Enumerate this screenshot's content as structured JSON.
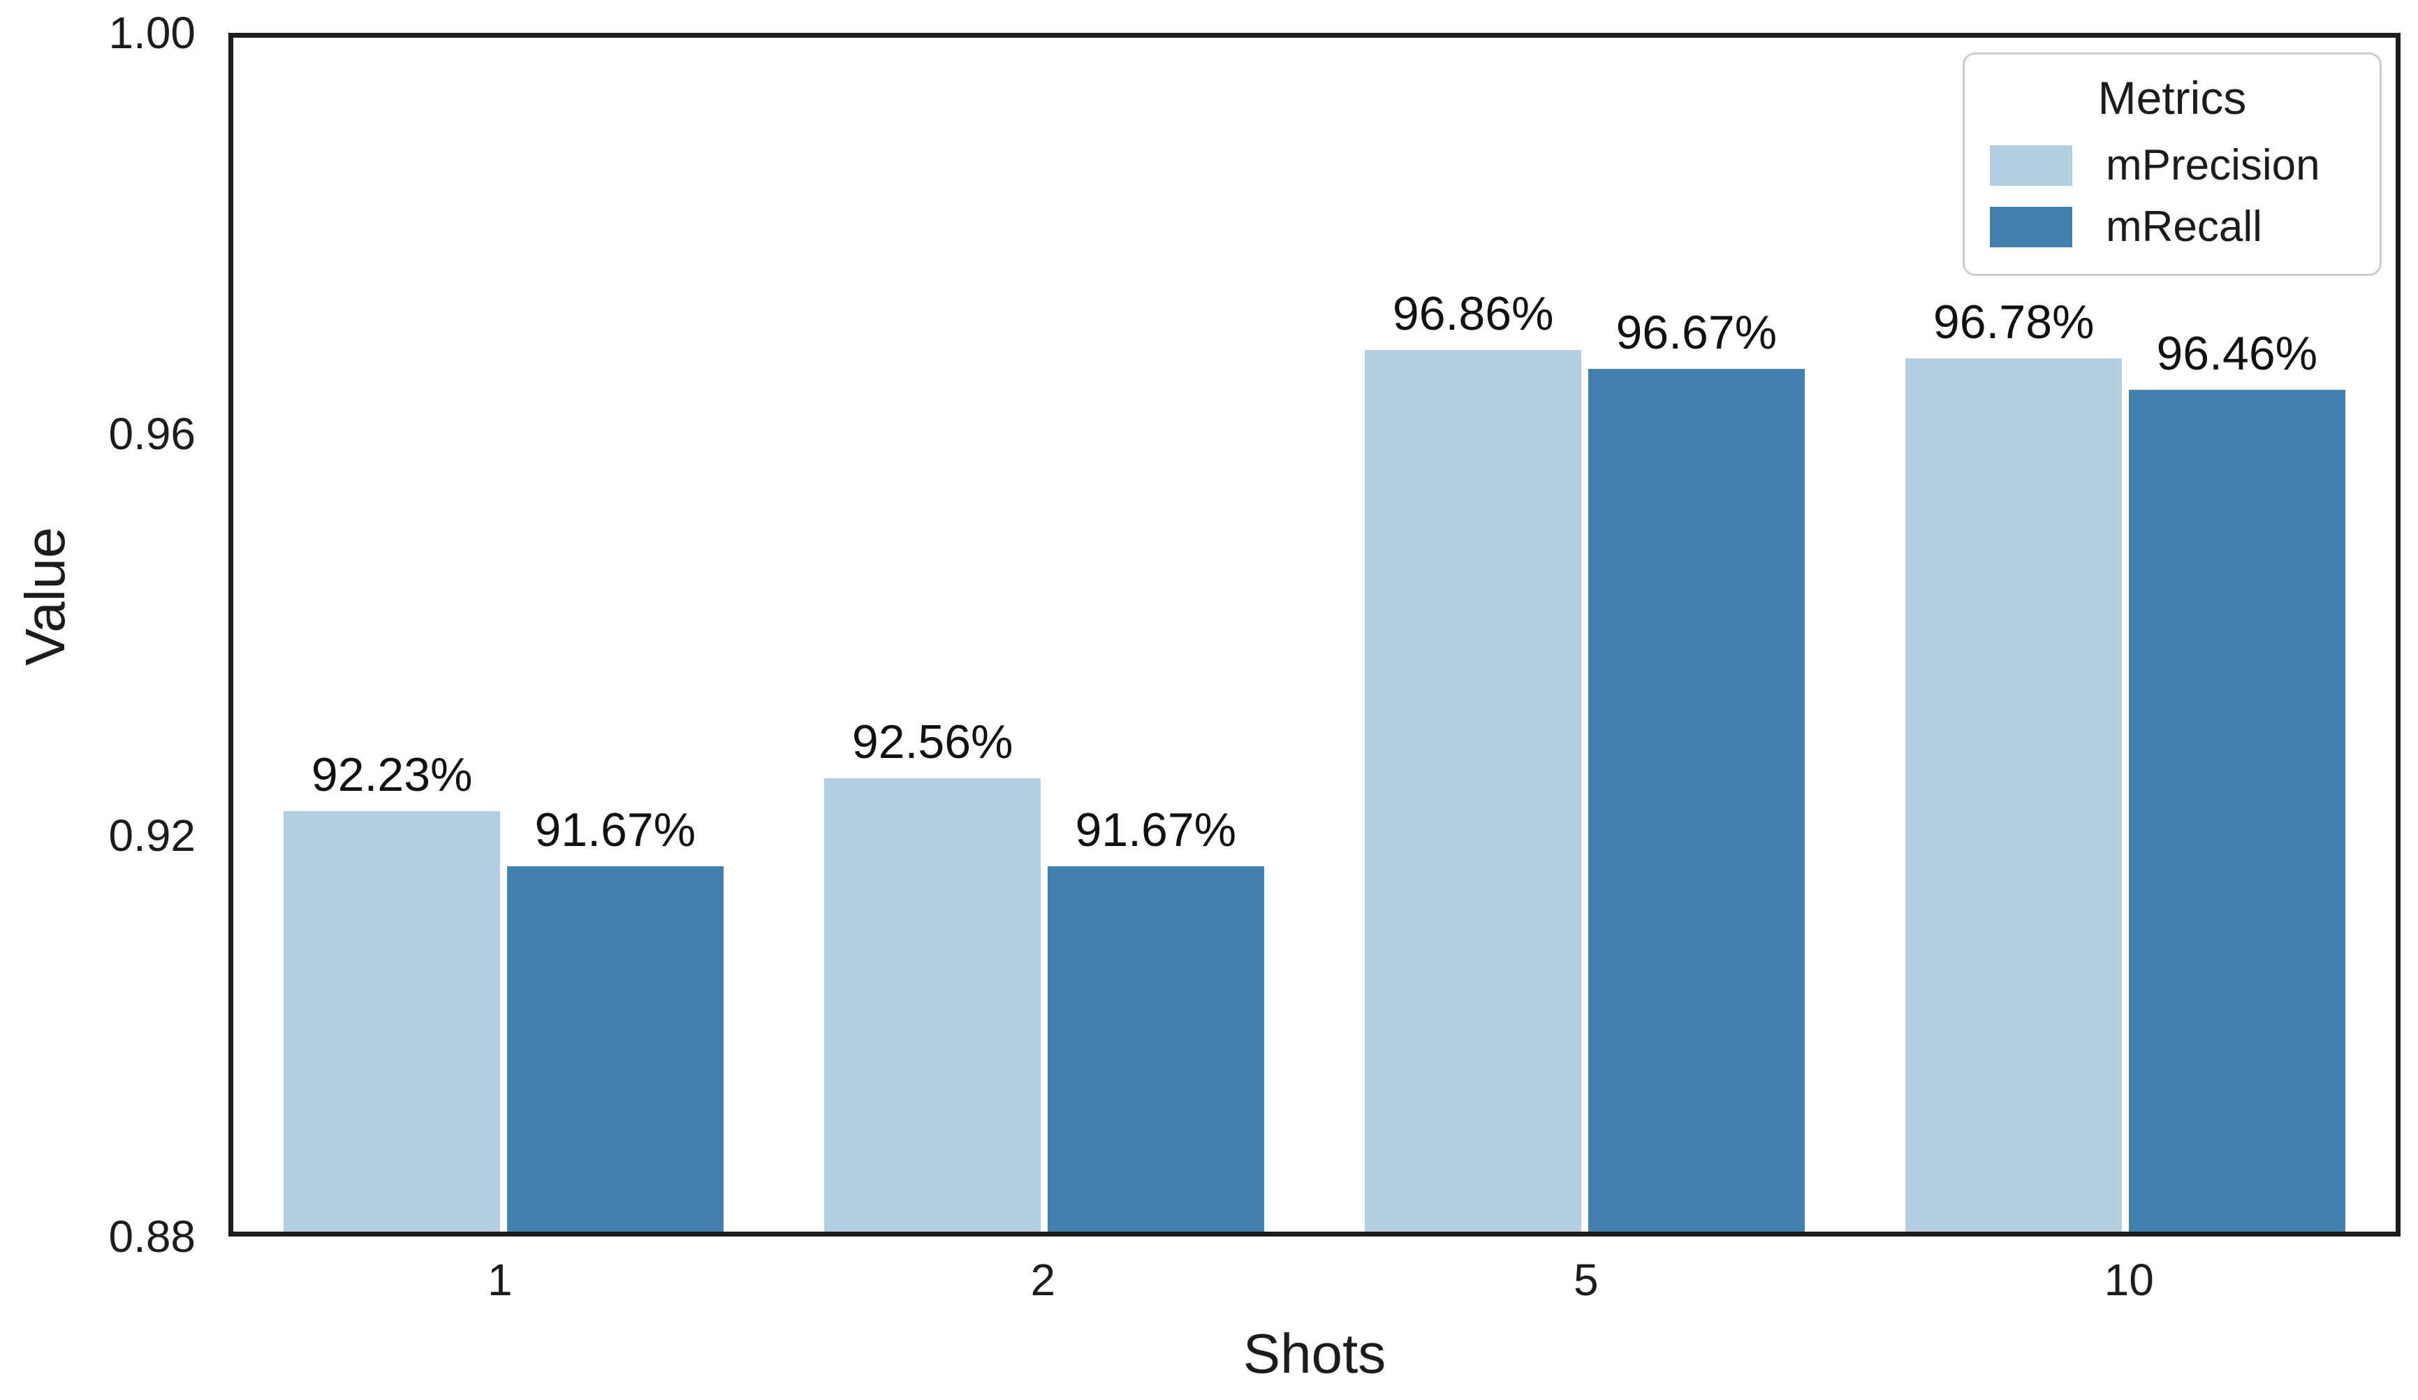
{
  "chart_data": {
    "type": "bar",
    "title": "",
    "xlabel": "Shots",
    "ylabel": "Value",
    "ylim": [
      0.88,
      1.0
    ],
    "yticks": [
      "0.88",
      "0.92",
      "0.96",
      "1.00"
    ],
    "categories": [
      "1",
      "2",
      "5",
      "10"
    ],
    "grid": false,
    "legend": {
      "title": "Metrics",
      "position": "upper right"
    },
    "series": [
      {
        "name": "mPrecision",
        "color": "#b4cfe1",
        "values": [
          0.9223,
          0.9256,
          0.9686,
          0.9678
        ],
        "labels": [
          "92.23%",
          "92.56%",
          "96.86%",
          "96.78%"
        ]
      },
      {
        "name": "mRecall",
        "color": "#4480ae",
        "values": [
          0.9167,
          0.9167,
          0.9667,
          0.9646
        ],
        "labels": [
          "91.67%",
          "91.67%",
          "96.67%",
          "96.46%"
        ]
      }
    ],
    "colors": {
      "background": "#ffffff",
      "spine": "#1c1c1c",
      "text": "#1c1c1c",
      "legend_border": "#cccccc"
    }
  }
}
